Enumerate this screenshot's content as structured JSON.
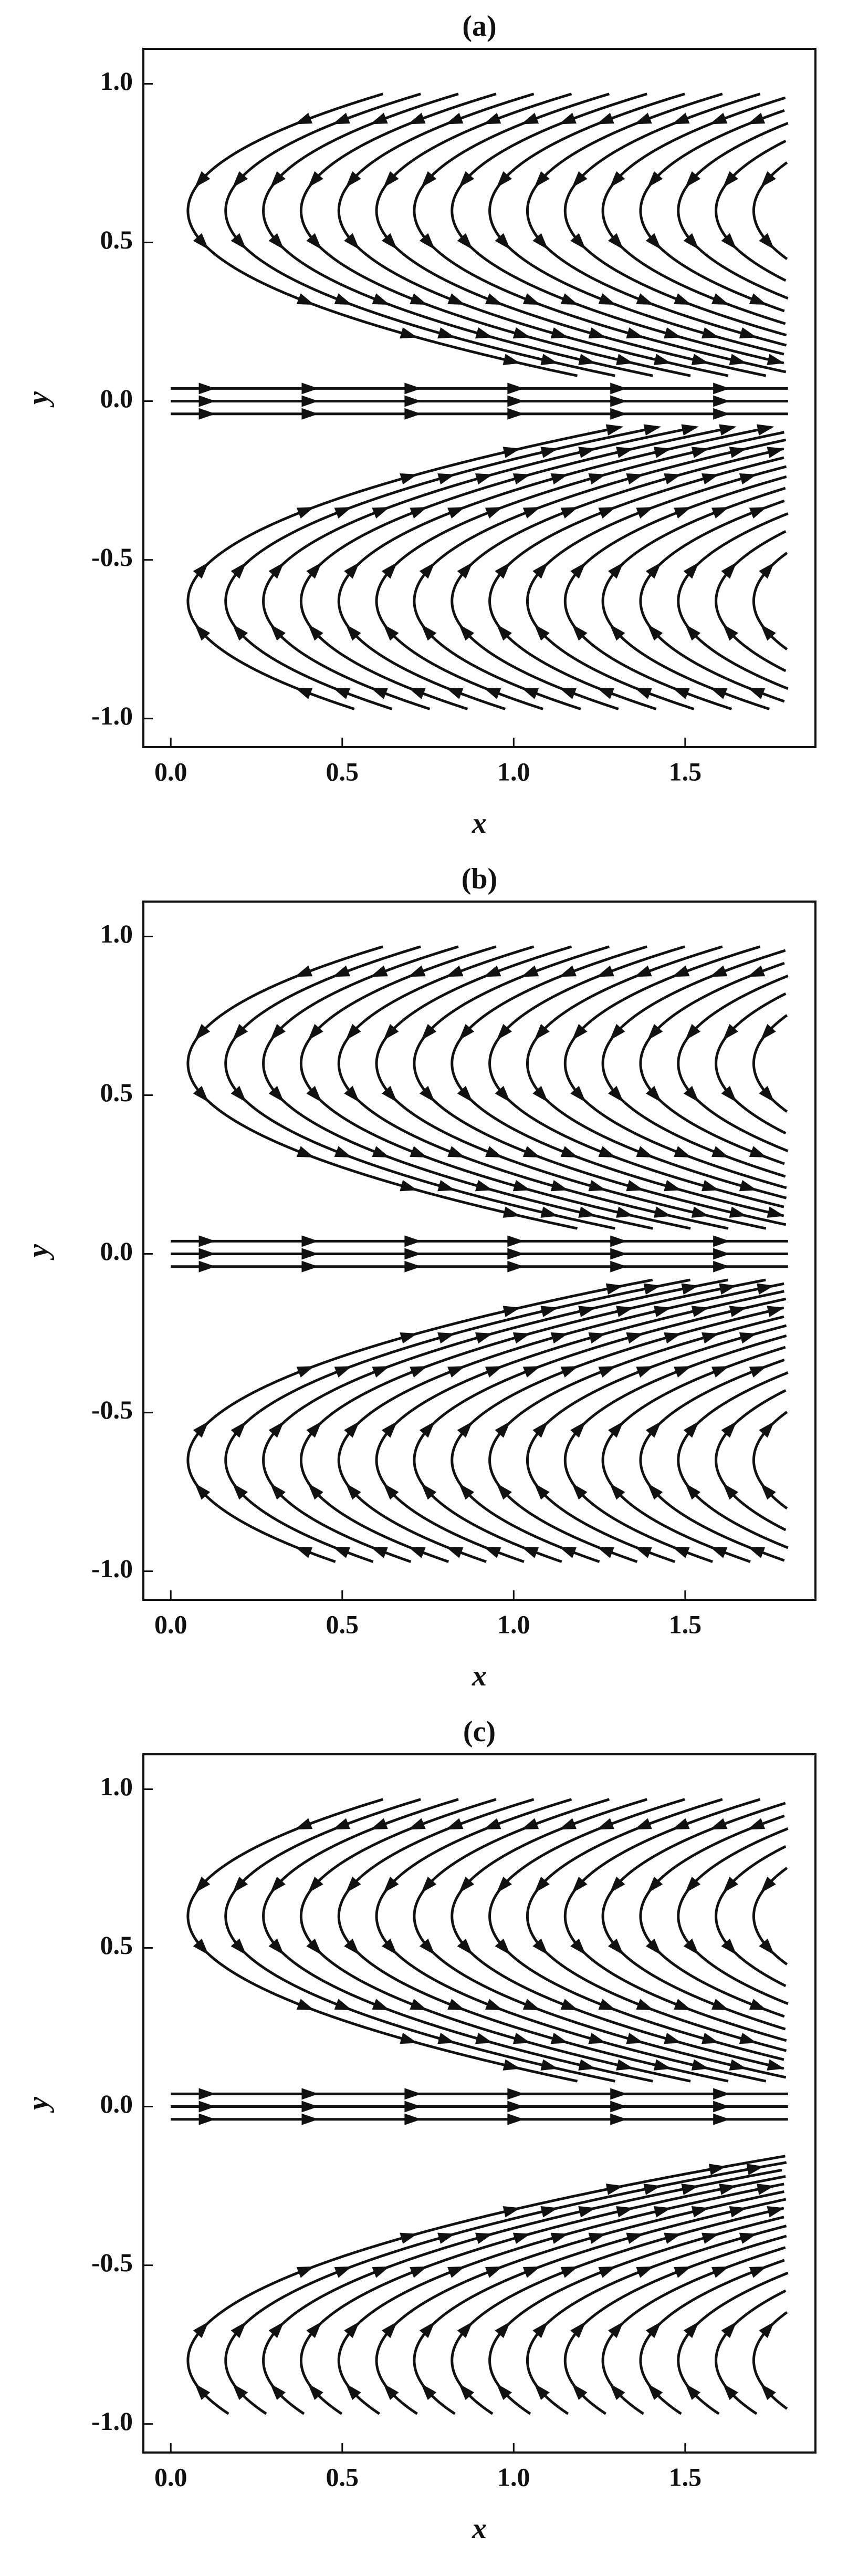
{
  "chart_data": [
    {
      "type": "streamplot",
      "title": "(a)",
      "xlabel": "x",
      "ylabel": "y",
      "xlim": [
        -0.08,
        1.88
      ],
      "ylim": [
        -1.09,
        1.11
      ],
      "xticks": [
        {
          "value": 0,
          "label": "0.0"
        },
        0.5,
        {
          "value": 1,
          "label": "1.0"
        },
        1.5
      ],
      "yticks": [
        {
          "value": -1,
          "label": "-1.0"
        },
        -0.5,
        {
          "value": 0,
          "label": "0.0"
        },
        0.5,
        {
          "value": 1,
          "label": "1.0"
        }
      ]
    },
    {
      "type": "streamplot",
      "title": "(b)",
      "xlabel": "x",
      "ylabel": "y",
      "xlim": [
        -0.08,
        1.88
      ],
      "ylim": [
        -1.09,
        1.11
      ],
      "xticks": [
        {
          "value": 0,
          "label": "0.0"
        },
        0.5,
        {
          "value": 1,
          "label": "1.0"
        },
        1.5
      ],
      "yticks": [
        {
          "value": -1,
          "label": "-1.0"
        },
        -0.5,
        {
          "value": 0,
          "label": "0.0"
        },
        0.5,
        {
          "value": 1,
          "label": "1.0"
        }
      ]
    },
    {
      "type": "streamplot",
      "title": "(c)",
      "xlabel": "x",
      "ylabel": "y",
      "xlim": [
        -0.08,
        1.88
      ],
      "ylim": [
        -1.09,
        1.11
      ],
      "xticks": [
        {
          "value": 0,
          "label": "0.0"
        },
        0.5,
        {
          "value": 1,
          "label": "1.0"
        },
        1.5
      ],
      "yticks": [
        {
          "value": -1,
          "label": "-1.0"
        },
        -0.5,
        {
          "value": 0,
          "label": "0.0"
        },
        0.5,
        {
          "value": 1,
          "label": "1.0"
        }
      ]
    }
  ]
}
